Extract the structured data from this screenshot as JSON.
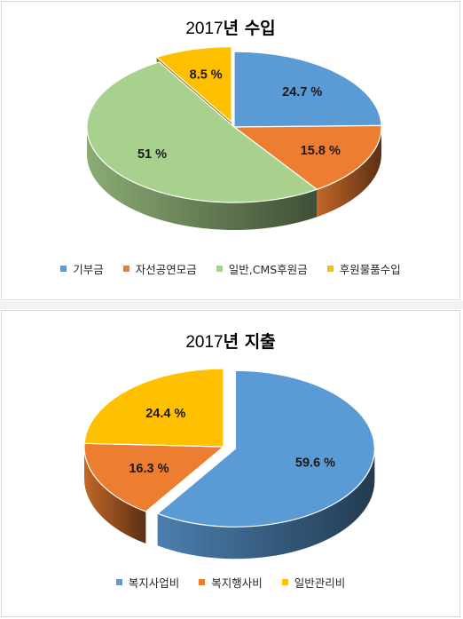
{
  "chart_data": [
    {
      "type": "pie",
      "title": {
        "number": "2017",
        "text": "년 수입"
      },
      "series": [
        {
          "name": "기부금",
          "value": 24.7,
          "label": "24.7 %",
          "color": "#5b9bd5"
        },
        {
          "name": "자선공연모금",
          "value": 15.8,
          "label": "15.8 %",
          "color": "#ed7d31"
        },
        {
          "name": "일반,CMS후원금",
          "value": 51,
          "label": "51 %",
          "color": "#a9d18e"
        },
        {
          "name": "후원물품수입",
          "value": 8.5,
          "label": "8.5 %",
          "color": "#ffc000"
        }
      ],
      "legend_position": "bottom",
      "exploded": "후원물품수입"
    },
    {
      "type": "pie",
      "title": {
        "number": "2017",
        "text": "년 지출"
      },
      "series": [
        {
          "name": "복지사업비",
          "value": 59.6,
          "label": "59.6 %",
          "color": "#5b9bd5"
        },
        {
          "name": "복지행사비",
          "value": 16.3,
          "label": "16.3 %",
          "color": "#ed7d31"
        },
        {
          "name": "일반관리비",
          "value": 24.4,
          "label": "24.4 %",
          "color": "#ffc000"
        }
      ],
      "legend_position": "bottom",
      "exploded": "복지사업비"
    }
  ]
}
